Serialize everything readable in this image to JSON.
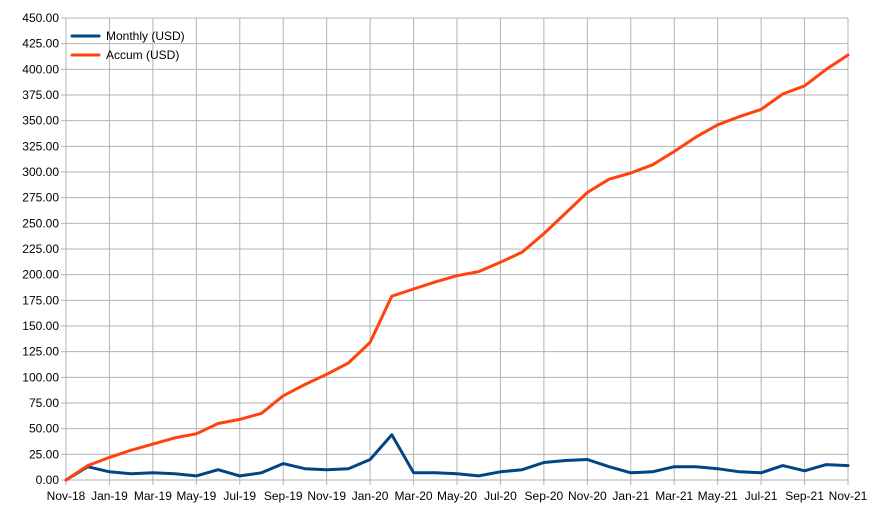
{
  "chart_data": {
    "type": "line",
    "title": "",
    "xlabel": "",
    "ylabel": "",
    "ylim": [
      0,
      450
    ],
    "y_tick_step": 25,
    "y_tick_labels": [
      "0.00",
      "25.00",
      "50.00",
      "75.00",
      "100.00",
      "125.00",
      "150.00",
      "175.00",
      "200.00",
      "225.00",
      "250.00",
      "275.00",
      "300.00",
      "325.00",
      "350.00",
      "375.00",
      "400.00",
      "425.00",
      "450.00"
    ],
    "grid": true,
    "legend_position": "top-left",
    "x": [
      "Nov-18",
      "Dec-18",
      "Jan-19",
      "Feb-19",
      "Mar-19",
      "Apr-19",
      "May-19",
      "Jun-19",
      "Jul-19",
      "Aug-19",
      "Sep-19",
      "Oct-19",
      "Nov-19",
      "Dec-19",
      "Jan-20",
      "Feb-20",
      "Mar-20",
      "Apr-20",
      "May-20",
      "Jun-20",
      "Jul-20",
      "Aug-20",
      "Sep-20",
      "Oct-20",
      "Nov-20",
      "Dec-20",
      "Jan-21",
      "Feb-21",
      "Mar-21",
      "Apr-21",
      "May-21",
      "Jun-21",
      "Jul-21",
      "Aug-21",
      "Sep-21",
      "Oct-21",
      "Nov-21"
    ],
    "x_tick_labels": [
      "Nov-18",
      "Jan-19",
      "Mar-19",
      "May-19",
      "Jul-19",
      "Sep-19",
      "Nov-19",
      "Jan-20",
      "Mar-20",
      "May-20",
      "Jul-20",
      "Sep-20",
      "Nov-20",
      "Jan-21",
      "Mar-21",
      "May-21",
      "Jul-21",
      "Sep-21",
      "Nov-21"
    ],
    "series": [
      {
        "name": "Monthly (USD)",
        "color": "#004586",
        "values": [
          0,
          13,
          8,
          6,
          7,
          6,
          4,
          10,
          4,
          7,
          16,
          11,
          10,
          11,
          20,
          44,
          7,
          7,
          6,
          4,
          8,
          10,
          17,
          19,
          20,
          13,
          7,
          8,
          13,
          13,
          11,
          8,
          7,
          14,
          9,
          15,
          14
        ]
      },
      {
        "name": "Accum (USD)",
        "color": "#ff420e",
        "values": [
          0,
          14,
          22,
          29,
          35,
          41,
          45,
          55,
          59,
          65,
          82,
          93,
          103,
          114,
          134,
          179,
          186,
          193,
          199,
          203,
          212,
          222,
          240,
          260,
          280,
          293,
          299,
          307,
          320,
          334,
          346,
          354,
          361,
          376,
          384,
          400,
          414
        ]
      }
    ]
  }
}
